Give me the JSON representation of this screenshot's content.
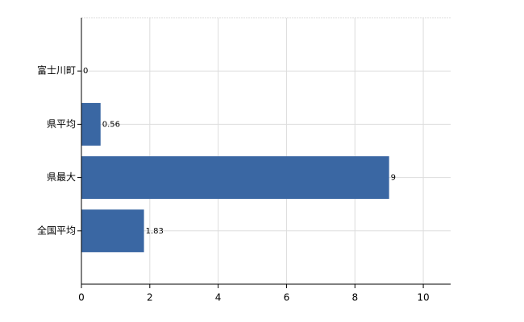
{
  "chart_data": {
    "type": "bar",
    "orientation": "horizontal",
    "categories": [
      "富士川町",
      "県平均",
      "県最大",
      "全国平均"
    ],
    "values": [
      0,
      0.56,
      9,
      1.83
    ],
    "color": "#3a67a3",
    "xlim": [
      0,
      10.8
    ],
    "xticks": [
      0,
      2,
      4,
      6,
      8,
      10
    ],
    "grid": true
  }
}
